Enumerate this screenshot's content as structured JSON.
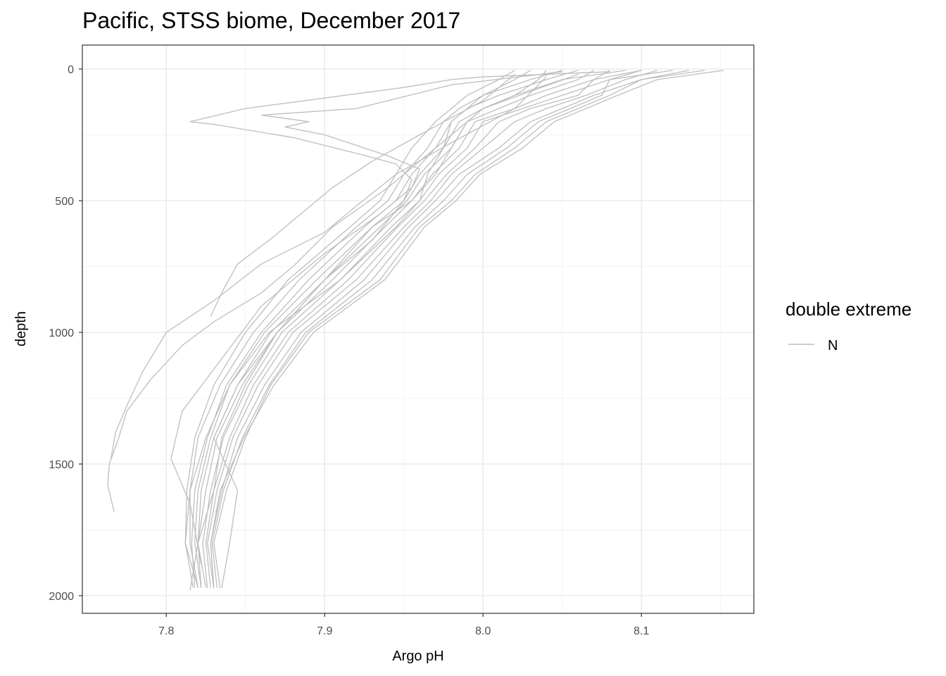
{
  "chart_data": {
    "type": "line",
    "title": "Pacific, STSS biome, December 2017",
    "xlabel": "Argo pH",
    "ylabel": "depth",
    "xlim": [
      7.747,
      8.171
    ],
    "ylim": [
      2067,
      -91
    ],
    "y_reversed": true,
    "grid": true,
    "x_ticks": [
      7.8,
      7.9,
      8.0,
      8.1
    ],
    "x_tick_labels": [
      "7.8",
      "7.9",
      "8.0",
      "8.1"
    ],
    "y_ticks": [
      0,
      500,
      1000,
      1500,
      2000
    ],
    "y_tick_labels": [
      "0",
      "500",
      "1000",
      "1500",
      "2000"
    ],
    "legend": {
      "title": "double extreme",
      "entries": [
        "N"
      ],
      "position": "right"
    },
    "line_color": "#bebebe",
    "depth": [
      5,
      40,
      100,
      150,
      200,
      300,
      400,
      500,
      600,
      800,
      1000,
      1200,
      1400,
      1600,
      1800,
      1970
    ],
    "series": [
      {
        "ph": [
          8.02,
          8.01,
          7.99,
          7.98,
          7.97,
          7.955,
          7.945,
          7.935,
          7.916,
          7.877,
          7.85,
          7.83,
          7.818,
          7.813,
          7.812,
          7.817
        ]
      },
      {
        "ph": [
          8.05,
          8.03,
          8.0,
          7.985,
          7.975,
          7.965,
          7.95,
          7.94,
          7.92,
          7.884,
          7.855,
          7.834,
          7.82,
          7.815,
          7.815,
          7.82
        ]
      },
      {
        "ph": [
          8.06,
          8.04,
          8.01,
          7.99,
          7.98,
          7.97,
          7.955,
          7.945,
          7.925,
          7.89,
          7.86,
          7.838,
          7.826,
          7.818,
          7.816,
          7.818
        ]
      },
      {
        "ph": [
          8.09,
          8.05,
          8.02,
          8.0,
          7.985,
          7.975,
          7.96,
          7.95,
          7.93,
          7.895,
          7.862,
          7.84,
          7.828,
          7.82,
          7.818,
          7.822
        ]
      },
      {
        "ph": [
          8.07,
          8.06,
          8.03,
          8.01,
          7.99,
          7.98,
          7.963,
          7.952,
          7.935,
          7.9,
          7.866,
          7.845,
          7.83,
          7.822,
          7.82,
          7.825
        ]
      },
      {
        "ph": [
          8.1,
          8.07,
          8.04,
          8.02,
          7.995,
          7.985,
          7.968,
          7.955,
          7.938,
          7.905,
          7.87,
          7.848,
          7.832,
          7.825,
          7.82,
          7.822
        ]
      },
      {
        "ph": [
          8.12,
          8.08,
          8.05,
          8.025,
          8.0,
          7.99,
          7.972,
          7.96,
          7.942,
          7.91,
          7.873,
          7.852,
          7.836,
          7.828,
          7.823,
          7.826
        ]
      },
      {
        "ph": [
          8.08,
          8.07,
          8.06,
          8.03,
          8.01,
          7.995,
          7.977,
          7.963,
          7.946,
          7.915,
          7.877,
          7.855,
          7.84,
          7.83,
          7.825,
          7.828
        ]
      },
      {
        "ph": [
          8.11,
          8.09,
          8.065,
          8.04,
          8.02,
          8.0,
          7.98,
          7.967,
          7.95,
          7.92,
          7.88,
          7.858,
          7.842,
          7.832,
          7.826,
          7.83
        ]
      },
      {
        "ph": [
          8.13,
          8.1,
          8.07,
          8.05,
          8.03,
          8.01,
          7.985,
          7.97,
          7.953,
          7.925,
          7.885,
          7.862,
          7.845,
          7.835,
          7.828,
          7.83
        ]
      },
      {
        "ph": [
          8.1,
          8.08,
          8.075,
          8.055,
          8.035,
          8.015,
          7.99,
          7.975,
          7.957,
          7.93,
          7.888,
          7.865,
          7.848,
          7.836,
          7.829,
          7.832
        ]
      },
      {
        "ph": [
          8.14,
          8.1,
          8.08,
          8.06,
          8.04,
          8.02,
          7.995,
          7.98,
          7.96,
          7.935,
          7.89,
          7.866,
          7.85,
          7.838,
          7.83,
          7.834
        ]
      },
      {
        "ph": [
          8.152,
          8.11,
          8.085,
          8.065,
          8.045,
          8.025,
          7.998,
          7.983,
          7.963,
          7.938,
          7.893,
          7.868,
          7.849,
          7.834,
          7.828,
          7.83
        ]
      },
      {
        "ph": [
          8.03,
          8.02,
          8.0,
          7.99,
          7.98,
          7.975,
          7.965,
          7.96,
          7.945,
          7.91,
          7.865,
          7.84,
          7.825,
          7.815,
          7.812,
          7.82
        ]
      },
      {
        "ph": [
          8.04,
          8.035,
          8.02,
          8.0,
          7.99,
          7.98,
          7.97,
          7.955,
          7.93,
          7.9,
          7.87,
          7.845,
          7.83,
          7.845,
          7.84,
          7.835
        ]
      },
      {
        "depth": [
          10,
          30,
          40,
          70,
          150,
          200,
          210,
          260,
          320,
          360,
          420,
          500,
          650,
          800,
          1000,
          1200,
          1400,
          1600,
          1800,
          1980
        ],
        "ph": [
          8.08,
          8.0,
          7.98,
          7.95,
          7.85,
          7.815,
          7.83,
          7.88,
          7.92,
          7.945,
          7.955,
          7.95,
          7.93,
          7.9,
          7.87,
          7.85,
          7.835,
          7.83,
          7.82,
          7.815
        ]
      },
      {
        "depth": [
          10,
          60,
          150,
          175,
          200,
          220,
          250,
          330,
          380,
          450,
          550,
          700,
          900,
          1100,
          1300,
          1480,
          1650,
          1880
        ],
        "ph": [
          8.05,
          7.98,
          7.92,
          7.86,
          7.89,
          7.875,
          7.9,
          7.94,
          7.96,
          7.955,
          7.935,
          7.9,
          7.86,
          7.835,
          7.81,
          7.803,
          7.815,
          7.822
        ]
      },
      {
        "depth": [
          20,
          120,
          250,
          350,
          450,
          550,
          650,
          740,
          850,
          940
        ],
        "ph": [
          8.02,
          8.0,
          7.96,
          7.93,
          7.905,
          7.885,
          7.865,
          7.845,
          7.835,
          7.828
        ]
      },
      {
        "depth": [
          30,
          150,
          280,
          400,
          520,
          620,
          740,
          880,
          1000,
          1150,
          1280,
          1380,
          1480
        ],
        "ph": [
          8.04,
          8.02,
          7.98,
          7.945,
          7.92,
          7.9,
          7.86,
          7.83,
          7.8,
          7.785,
          7.775,
          7.768,
          7.765
        ]
      },
      {
        "depth": [
          20,
          150,
          300,
          450,
          600,
          750,
          850,
          960,
          1050,
          1180,
          1300,
          1400,
          1500,
          1580,
          1680
        ],
        "ph": [
          8.06,
          8.0,
          7.97,
          7.94,
          7.905,
          7.88,
          7.86,
          7.83,
          7.81,
          7.79,
          7.775,
          7.77,
          7.764,
          7.763,
          7.767
        ]
      }
    ]
  }
}
